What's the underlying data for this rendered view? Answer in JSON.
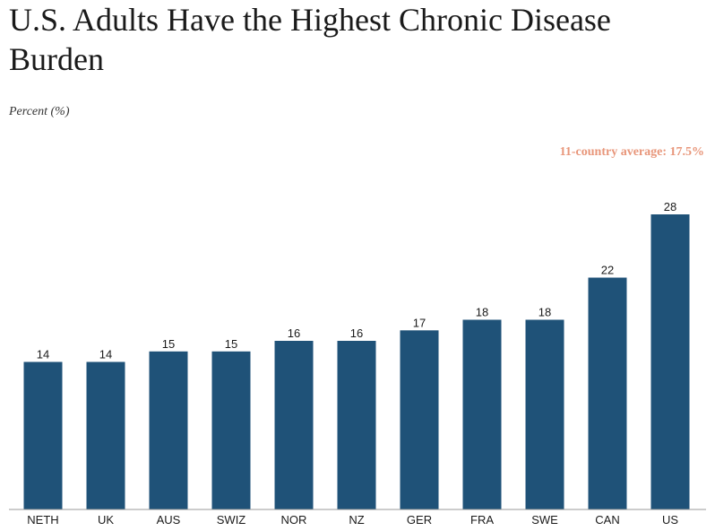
{
  "title": "U.S. Adults Have the Highest Chronic Disease Burden",
  "subtitle": "Percent (%)",
  "average_note": "11-country average: 17.5%",
  "colors": {
    "bar": "#1f5278",
    "average_note": "#e8967a",
    "baseline": "#999999"
  },
  "chart_data": {
    "type": "bar",
    "title": "U.S. Adults Have the Highest Chronic Disease Burden",
    "ylabel": "Percent (%)",
    "categories": [
      "NETH",
      "UK",
      "AUS",
      "SWIZ",
      "NOR",
      "NZ",
      "GER",
      "FRA",
      "SWE",
      "CAN",
      "US"
    ],
    "values": [
      14,
      14,
      15,
      15,
      16,
      16,
      17,
      18,
      18,
      22,
      28
    ],
    "value_labels": [
      "14",
      "14",
      "15",
      "15",
      "16",
      "16",
      "17",
      "18",
      "18",
      "22",
      "28"
    ],
    "ylim": [
      0,
      28
    ],
    "grid": false,
    "annotations": [
      "11-country average: 17.5%"
    ]
  }
}
